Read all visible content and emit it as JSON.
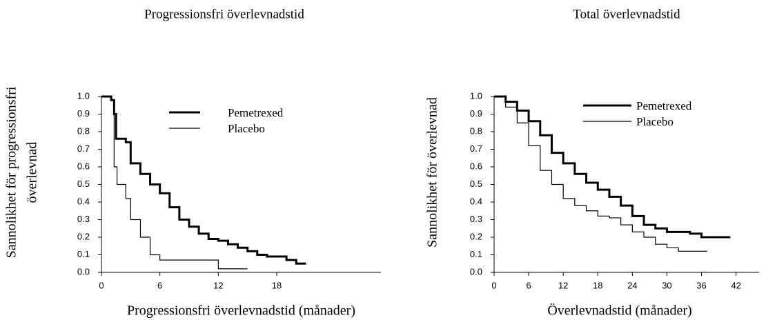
{
  "chart_data": [
    {
      "type": "step",
      "title": "Progressionsfri överlevnadstid",
      "xlabel": "Progressionsfri överlevnadstid (månader)",
      "ylabel": [
        "Sannolikhet för progressionsfri",
        "överlevnad"
      ],
      "xlim": [
        0,
        28.7
      ],
      "ylim": [
        0,
        1
      ],
      "xticks": [
        0,
        6,
        12,
        18
      ],
      "yticks": [
        {
          "value": 0,
          "label": "0.0"
        },
        0.1,
        0.2,
        0.3,
        0.4,
        0.5,
        0.6,
        0.7,
        0.8,
        0.9,
        {
          "value": 1,
          "label": "1.0"
        }
      ],
      "series": [
        {
          "name": "Pemetrexed",
          "color": "#000000",
          "linewidth": 3,
          "x": [
            0,
            1,
            1.3,
            1.5,
            2.5,
            3,
            4,
            5,
            6,
            7,
            8,
            9,
            10,
            11,
            12,
            13,
            14,
            15,
            16,
            17,
            18,
            19,
            20,
            21
          ],
          "values": [
            1.0,
            0.98,
            0.9,
            0.76,
            0.74,
            0.62,
            0.56,
            0.5,
            0.45,
            0.37,
            0.3,
            0.26,
            0.22,
            0.19,
            0.18,
            0.16,
            0.14,
            0.12,
            0.1,
            0.09,
            0.09,
            0.07,
            0.05,
            0.05
          ]
        },
        {
          "name": "Placebo",
          "color": "#000000",
          "linewidth": 1.2,
          "x": [
            0,
            1,
            1.3,
            1.6,
            2.5,
            3,
            4,
            5,
            6,
            8,
            10,
            12,
            15
          ],
          "values": [
            1.0,
            0.98,
            0.6,
            0.5,
            0.42,
            0.3,
            0.2,
            0.1,
            0.07,
            0.07,
            0.07,
            0.02,
            0.02
          ]
        }
      ]
    },
    {
      "type": "step",
      "title": "Total överlevnadstid",
      "xlabel": "Överlevnadstid (månader)",
      "ylabel": [
        "Sannolikhet för överlevnad"
      ],
      "xlim": [
        0,
        46
      ],
      "ylim": [
        0,
        1
      ],
      "xticks": [
        0,
        6,
        12,
        18,
        24,
        30,
        36,
        42
      ],
      "yticks": [
        {
          "value": 0,
          "label": "0.0"
        },
        0.1,
        0.2,
        0.3,
        0.4,
        0.5,
        0.6,
        0.7,
        0.8,
        0.9,
        {
          "value": 1,
          "label": "1.0"
        }
      ],
      "series": [
        {
          "name": "Pemetrexed",
          "color": "#000000",
          "linewidth": 3,
          "x": [
            0,
            2,
            4,
            6,
            8,
            10,
            12,
            14,
            16,
            18,
            20,
            22,
            24,
            26,
            28,
            30,
            32,
            34,
            36,
            38,
            41
          ],
          "values": [
            1.0,
            0.97,
            0.92,
            0.86,
            0.78,
            0.68,
            0.62,
            0.56,
            0.51,
            0.47,
            0.43,
            0.38,
            0.32,
            0.27,
            0.25,
            0.23,
            0.23,
            0.22,
            0.2,
            0.2,
            0.2
          ]
        },
        {
          "name": "Placebo",
          "color": "#000000",
          "linewidth": 1.2,
          "x": [
            0,
            2,
            4,
            6,
            8,
            10,
            12,
            14,
            16,
            18,
            20,
            22,
            24,
            26,
            28,
            30,
            32,
            34,
            37
          ],
          "values": [
            1.0,
            0.94,
            0.85,
            0.72,
            0.58,
            0.5,
            0.42,
            0.38,
            0.35,
            0.32,
            0.31,
            0.27,
            0.23,
            0.2,
            0.16,
            0.14,
            0.12,
            0.12,
            0.12
          ]
        }
      ]
    }
  ]
}
